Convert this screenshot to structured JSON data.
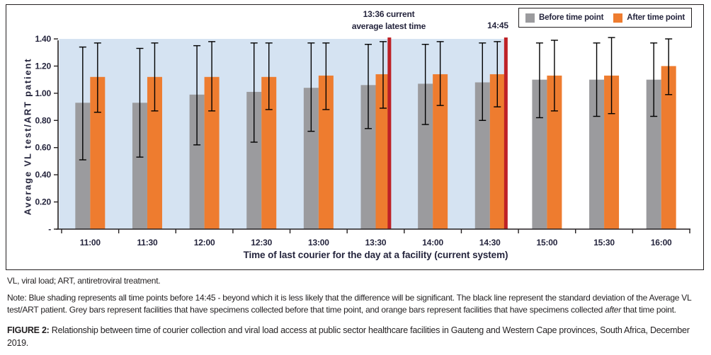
{
  "figure": {
    "abbrev_line": "VL, viral load; ART, antiretroviral treatment.",
    "note": {
      "part1": "Note: Blue shading represents all time points before 14:45 - beyond which it is less likely that the difference will be significant. The black line represent the standard deviation of the Average VL test/ART patient. Grey bars represent facilities that have specimens collected before that time point, and orange bars represent facilities that have specimens collected ",
      "italic": "after",
      "part2": " that time point."
    },
    "caption_label": "FIGURE 2:",
    "caption_text": " Relationship between time of courier collection and viral load access at public sector healthcare facilities in Gauteng and Western Cape provinces, South Africa, December 2019."
  },
  "chart_data": {
    "type": "bar",
    "title": "",
    "xlabel": "Time of last courier for the day at a facility (current system)",
    "ylabel": "Average VL test/ART patient",
    "categories": [
      "11:00",
      "11:30",
      "12:00",
      "12:30",
      "13:00",
      "13:30",
      "14:00",
      "14:30",
      "15:00",
      "15:30",
      "16:00"
    ],
    "series": [
      {
        "name": "Before time point",
        "color": "#9b9b9e",
        "values": [
          0.93,
          0.93,
          0.99,
          1.01,
          1.04,
          1.06,
          1.07,
          1.08,
          1.1,
          1.1,
          1.1
        ],
        "err_low": [
          0.51,
          0.53,
          0.62,
          0.64,
          0.72,
          0.74,
          0.77,
          0.8,
          0.82,
          0.83,
          0.83
        ],
        "err_high": [
          1.34,
          1.33,
          1.35,
          1.37,
          1.37,
          1.36,
          1.36,
          1.37,
          1.37,
          1.37,
          1.37
        ]
      },
      {
        "name": "After time point",
        "color": "#ee7c2f",
        "values": [
          1.12,
          1.12,
          1.12,
          1.12,
          1.13,
          1.14,
          1.14,
          1.14,
          1.13,
          1.13,
          1.2
        ],
        "err_low": [
          0.86,
          0.87,
          0.87,
          0.88,
          0.88,
          0.89,
          0.91,
          0.9,
          0.87,
          0.85,
          0.99
        ],
        "err_high": [
          1.37,
          1.37,
          1.38,
          1.37,
          1.37,
          1.38,
          1.38,
          1.38,
          1.39,
          1.41,
          1.4
        ]
      }
    ],
    "ylim": [
      0,
      1.4
    ],
    "ytick_step": 0.2,
    "ytick_labels_top_down": [
      "1.40",
      "1.20",
      "1.00",
      "0.80",
      "0.60",
      "0.40",
      "0.20",
      "-"
    ],
    "grid": false,
    "legend_position": "top-right",
    "error_bar_color": "#000000",
    "shading": {
      "color": "#d5e3f2",
      "x_frac_from": 0,
      "x_frac_to": 7.78
    },
    "vlines": [
      {
        "time": "13:36",
        "x_frac": 5.74,
        "color": "#be2126"
      },
      {
        "time": "14:45",
        "x_frac": 7.78,
        "color": "#be2126"
      }
    ],
    "annotations": {
      "vline1_label_line1": "13:36 current",
      "vline1_label_line2": "average latest time",
      "vline2_label": "14:45"
    }
  },
  "colors": {
    "axis": "#231f20",
    "tick_text": "#25253d",
    "shading_blue": "#d5e3f2",
    "cutoff_red": "#be2126",
    "bar_grey": "#9b9b9e",
    "bar_orange": "#ee7c2f"
  }
}
